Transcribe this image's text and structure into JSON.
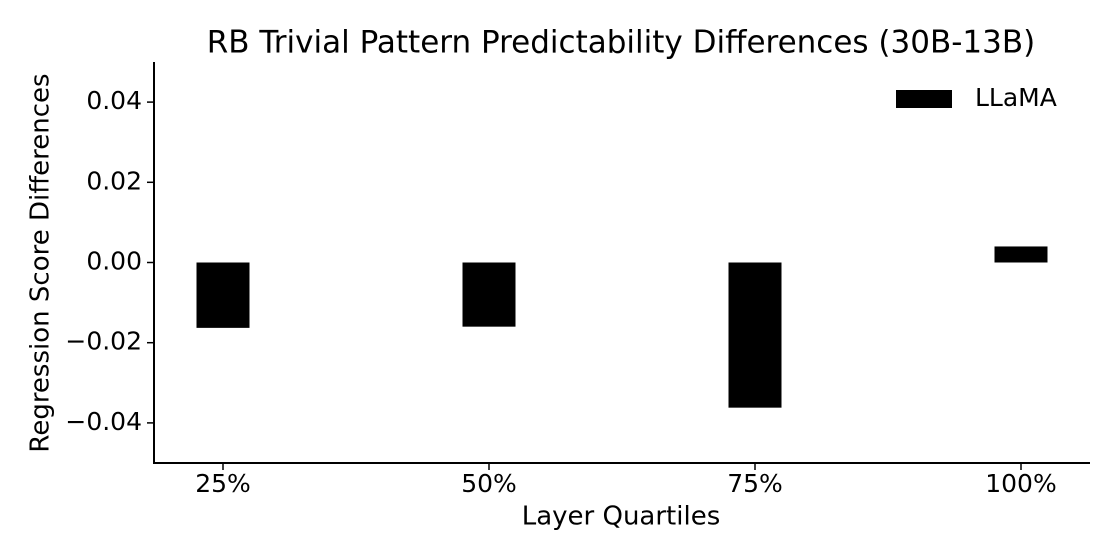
{
  "chart_data": {
    "type": "bar",
    "title": "RB Trivial Pattern Predictability Differences (30B-13B)",
    "xlabel": "Layer Quartiles",
    "ylabel": "Regression Score Differences",
    "categories": [
      "25%",
      "50%",
      "75%",
      "100%"
    ],
    "series": [
      {
        "name": "LLaMA",
        "color": "#000000",
        "values": [
          -0.0163,
          -0.016,
          -0.0362,
          0.004
        ]
      }
    ],
    "ylim": [
      -0.05,
      0.05
    ],
    "yticks": [
      {
        "value": -0.04,
        "label": "−0.04"
      },
      {
        "value": -0.02,
        "label": "−0.02"
      },
      {
        "value": 0,
        "label": "0.00"
      },
      0.02,
      0.04
    ],
    "grid": false,
    "legend": "upper right"
  }
}
